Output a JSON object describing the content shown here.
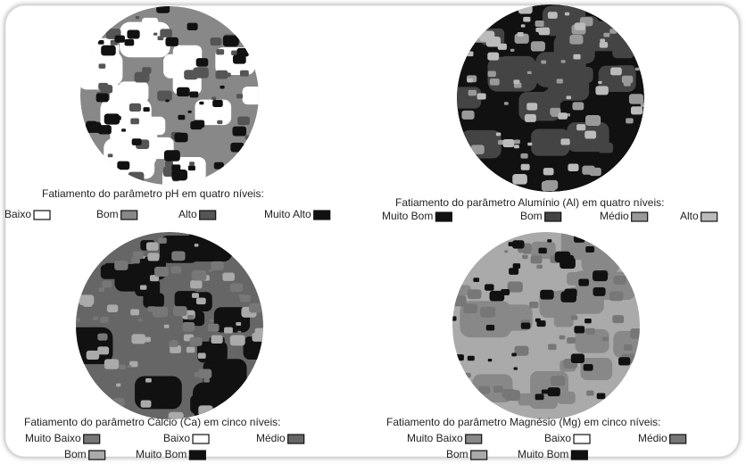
{
  "panels": [
    {
      "caption": "Fatiamento do parâmetro pH em quatro níveis:",
      "legend": [
        {
          "label": "Baixo",
          "color": "#ffffff"
        },
        {
          "label": "Bom",
          "color": "#888888"
        },
        {
          "label": "Alto",
          "color": "#555555"
        },
        {
          "label": "Muito Alto",
          "color": "#111111"
        }
      ]
    },
    {
      "caption": "Fatiamento do parâmetro Alumínio (Al) em quatro níveis:",
      "legend": [
        {
          "label": "Muito Bom",
          "color": "#111111"
        },
        {
          "label": "Bom",
          "color": "#444444"
        },
        {
          "label": "Médio",
          "color": "#999999"
        },
        {
          "label": "Alto",
          "color": "#bbbbbb"
        }
      ]
    },
    {
      "caption": "Fatiamento do parâmetro Cálcio (Ca) em cinco níveis:",
      "legend": [
        {
          "label": "Muito Baixo",
          "color": "#777777"
        },
        {
          "label": "Baixo",
          "color": "#ffffff"
        },
        {
          "label": "Médio",
          "color": "#666666"
        },
        {
          "label": "Bom",
          "color": "#aaaaaa"
        },
        {
          "label": "Muito Bom",
          "color": "#111111"
        }
      ]
    },
    {
      "caption": "Fatiamento do parâmetro Magnésio (Mg) em cinco níveis:",
      "legend": [
        {
          "label": "Muito Baixo",
          "color": "#888888"
        },
        {
          "label": "Baixo",
          "color": "#ffffff"
        },
        {
          "label": "Médio",
          "color": "#777777"
        },
        {
          "label": "Bom",
          "color": "#aaaaaa"
        },
        {
          "label": "Muito Bom",
          "color": "#111111"
        }
      ]
    }
  ]
}
